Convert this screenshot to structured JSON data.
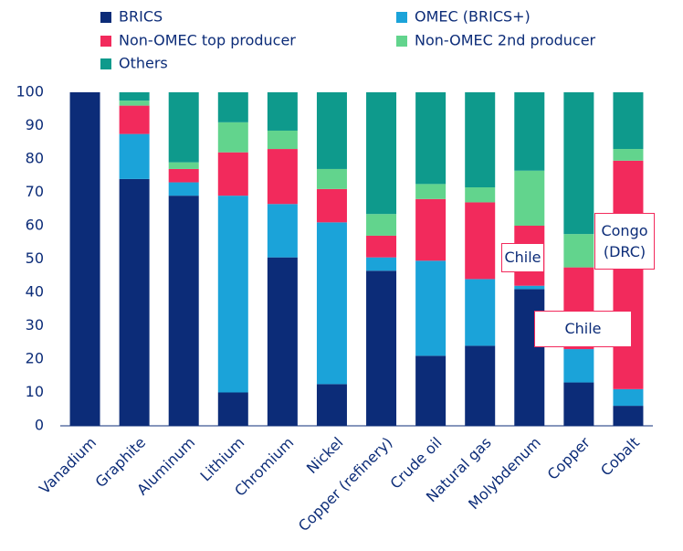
{
  "chart_data": {
    "type": "stacked_bar",
    "categories": [
      "Vanadium",
      "Graphite",
      "Aluminum",
      "Lithium",
      "Chromium",
      "Nickel",
      "Copper (refinery)",
      "Crude oil",
      "Natural gas",
      "Molybdenum",
      "Copper",
      "Cobalt"
    ],
    "series": [
      {
        "name": "BRICS",
        "color": "#0c2c78",
        "values": [
          100,
          74,
          69,
          10,
          50.5,
          12.5,
          46.5,
          21,
          24,
          41,
          13,
          6
        ]
      },
      {
        "name": "OMEC (BRICS+)",
        "color": "#1ba3d9",
        "values": [
          0,
          13.5,
          4,
          59,
          16,
          48.5,
          4,
          28.5,
          20,
          1,
          10,
          5
        ]
      },
      {
        "name": "Non-OMEC top producer",
        "color": "#f22a5c",
        "values": [
          0,
          8.5,
          4,
          13,
          16.5,
          10,
          6.5,
          18.5,
          23,
          18,
          24.5,
          68.5
        ]
      },
      {
        "name": "Non-OMEC 2nd producer",
        "color": "#62d48d",
        "values": [
          0,
          1.5,
          2,
          9,
          5.5,
          6,
          6.5,
          4.5,
          4.5,
          16.5,
          10,
          3.5
        ]
      },
      {
        "name": "Others",
        "color": "#0e9a8c",
        "values": [
          0,
          2.5,
          21,
          9,
          11.5,
          23,
          36.5,
          27.5,
          28.5,
          23.5,
          42.5,
          17
        ]
      }
    ],
    "ylim": [
      0,
      100
    ],
    "yticks": [
      0,
      10,
      20,
      30,
      40,
      50,
      60,
      70,
      80,
      90,
      100
    ],
    "annotations": [
      {
        "text": "Chile"
      },
      {
        "text": "Chile"
      },
      {
        "text": "Congo (DRC)"
      }
    ]
  }
}
